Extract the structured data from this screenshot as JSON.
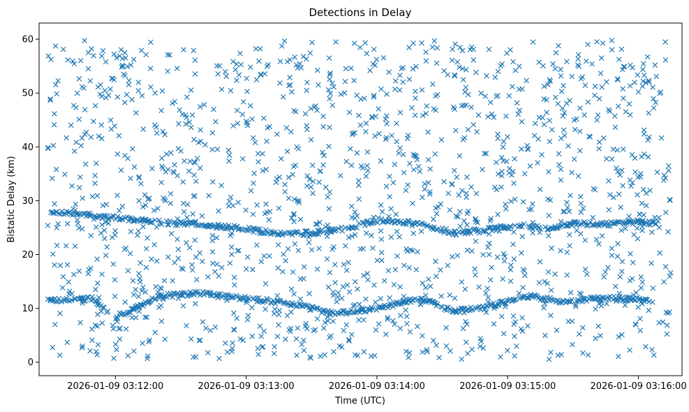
{
  "chart_data": {
    "type": "scatter",
    "title": "Detections in Delay",
    "xlabel": "Time (UTC)",
    "ylabel": "Bistatic Delay (km)",
    "marker": "x",
    "marker_color": "#1f77b4",
    "grid": false,
    "xlim": [
      "2026-01-09 03:11:25",
      "2026-01-09 03:16:20"
    ],
    "ylim": [
      -2.5,
      63
    ],
    "x_ticks": [
      "2026-01-09 03:12:00",
      "2026-01-09 03:13:00",
      "2026-01-09 03:14:00",
      "2026-01-09 03:15:00",
      "2026-01-09 03:16:00"
    ],
    "y_ticks": [
      0,
      10,
      20,
      30,
      40,
      50,
      60
    ],
    "data_time_range": [
      "2026-01-09 03:11:29",
      "2026-01-09 03:16:15"
    ],
    "tracks": [
      {
        "points": [
          [
            "2026-01-09 03:11:30",
            28.0
          ],
          [
            "2026-01-09 03:11:40",
            27.5
          ],
          [
            "2026-01-09 03:11:50",
            27.2
          ],
          [
            "2026-01-09 03:12:00",
            26.8
          ],
          [
            "2026-01-09 03:12:20",
            26.0
          ],
          [
            "2026-01-09 03:12:40",
            25.5
          ],
          [
            "2026-01-09 03:13:00",
            24.8
          ],
          [
            "2026-01-09 03:13:15",
            23.8
          ],
          [
            "2026-01-09 03:13:30",
            24.0
          ],
          [
            "2026-01-09 03:13:45",
            24.8
          ],
          [
            "2026-01-09 03:14:00",
            26.3
          ],
          [
            "2026-01-09 03:14:20",
            25.8
          ],
          [
            "2026-01-09 03:14:35",
            24.0
          ],
          [
            "2026-01-09 03:14:50",
            24.6
          ],
          [
            "2026-01-09 03:15:05",
            25.4
          ],
          [
            "2026-01-09 03:15:20",
            24.8
          ],
          [
            "2026-01-09 03:15:30",
            25.8
          ],
          [
            "2026-01-09 03:15:45",
            25.6
          ],
          [
            "2026-01-09 03:15:55",
            26.0
          ],
          [
            "2026-01-09 03:16:10",
            25.8
          ]
        ]
      },
      {
        "points": [
          [
            "2026-01-09 03:11:30",
            11.5
          ],
          [
            "2026-01-09 03:11:50",
            11.8
          ],
          [
            "2026-01-09 03:12:00",
            8.2
          ],
          [
            "2026-01-09 03:12:20",
            12.3
          ],
          [
            "2026-01-09 03:12:40",
            12.8
          ],
          [
            "2026-01-09 03:13:00",
            11.8
          ],
          [
            "2026-01-09 03:13:20",
            11.0
          ],
          [
            "2026-01-09 03:13:40",
            9.0
          ],
          [
            "2026-01-09 03:14:00",
            10.0
          ],
          [
            "2026-01-09 03:14:20",
            11.8
          ],
          [
            "2026-01-09 03:14:35",
            9.5
          ],
          [
            "2026-01-09 03:14:50",
            10.2
          ],
          [
            "2026-01-09 03:15:10",
            12.3
          ],
          [
            "2026-01-09 03:15:25",
            11.2
          ],
          [
            "2026-01-09 03:15:45",
            12.0
          ],
          [
            "2026-01-09 03:16:05",
            11.5
          ]
        ]
      }
    ]
  }
}
